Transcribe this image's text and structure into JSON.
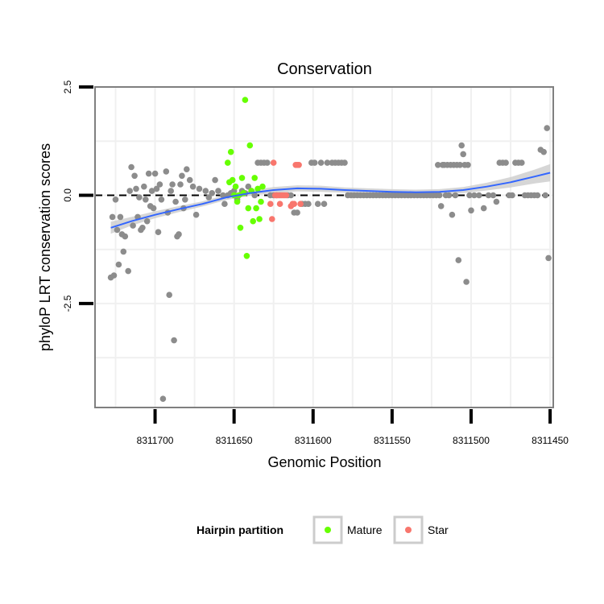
{
  "chart_data": {
    "type": "scatter",
    "title": "Conservation",
    "xlabel": "Genomic Position",
    "ylabel": "phyloP LRT conservation scores",
    "x_reversed": true,
    "xlim": [
      8311738,
      8311448
    ],
    "ylim": [
      -4.9,
      2.5
    ],
    "x_ticks": [
      8311700,
      8311650,
      8311600,
      8311550,
      8311500,
      8311450
    ],
    "x_tick_labels": [
      "8311700",
      "8311650",
      "8311600",
      "8311550",
      "8311500",
      "8311450"
    ],
    "y_ticks": [
      2.5,
      0.0,
      -2.5
    ],
    "y_tick_labels": [
      "2.5",
      "0.0",
      "-2.5"
    ],
    "reference_line": 0,
    "grid": true,
    "legend": {
      "title": "Hairpin partition",
      "entries": [
        {
          "label": "Mature",
          "color": "#66ff00"
        },
        {
          "label": "Star",
          "color": "#f8766d"
        }
      ]
    },
    "colors": {
      "other": "#8c8c8c",
      "smooth_line": "#3366ff",
      "ribbon": "#cccccc"
    },
    "series": [
      {
        "name": "Other",
        "points": [
          [
            8311727,
            -0.5
          ],
          [
            8311728,
            -1.9
          ],
          [
            8311726,
            -1.85
          ],
          [
            8311725,
            -0.1
          ],
          [
            8311723,
            -1.6
          ],
          [
            8311722,
            -0.5
          ],
          [
            8311724,
            -0.8
          ],
          [
            8311721,
            -0.9
          ],
          [
            8311720,
            -1.3
          ],
          [
            8311719,
            -0.95
          ],
          [
            8311717,
            -1.75
          ],
          [
            8311716,
            0.1
          ],
          [
            8311715,
            0.65
          ],
          [
            8311714,
            -0.7
          ],
          [
            8311713,
            0.45
          ],
          [
            8311712,
            0.15
          ],
          [
            8311711,
            -0.5
          ],
          [
            8311710,
            -0.05
          ],
          [
            8311709,
            -0.8
          ],
          [
            8311708,
            -0.75
          ],
          [
            8311707,
            0.2
          ],
          [
            8311706,
            -0.1
          ],
          [
            8311705,
            -0.6
          ],
          [
            8311704,
            0.5
          ],
          [
            8311703,
            -0.25
          ],
          [
            8311702,
            0.1
          ],
          [
            8311701,
            -0.3
          ],
          [
            8311700,
            0.5
          ],
          [
            8311699,
            0.15
          ],
          [
            8311698,
            -0.85
          ],
          [
            8311697,
            0.25
          ],
          [
            8311696,
            -0.1
          ],
          [
            8311695,
            -4.7
          ],
          [
            8311693,
            0.55
          ],
          [
            8311692,
            -0.4
          ],
          [
            8311691,
            -2.3
          ],
          [
            8311690,
            0.1
          ],
          [
            8311689,
            0.25
          ],
          [
            8311688,
            -3.35
          ],
          [
            8311687,
            -0.15
          ],
          [
            8311686,
            -0.95
          ],
          [
            8311685,
            -0.9
          ],
          [
            8311684,
            0.25
          ],
          [
            8311683,
            0.45
          ],
          [
            8311682,
            -0.3
          ],
          [
            8311681,
            -0.1
          ],
          [
            8311680,
            0.6
          ],
          [
            8311678,
            0.35
          ],
          [
            8311676,
            0.2
          ],
          [
            8311674,
            -0.45
          ],
          [
            8311672,
            0.15
          ],
          [
            8311668,
            0.1
          ],
          [
            8311666,
            -0.05
          ],
          [
            8311664,
            0.05
          ],
          [
            8311662,
            0.35
          ],
          [
            8311660,
            0.1
          ],
          [
            8311657,
            0.0
          ],
          [
            8311656,
            -0.2
          ],
          [
            8311654,
            0.0
          ],
          [
            8311652,
            0.05
          ],
          [
            8311650,
            0.1
          ],
          [
            8311648,
            -0.1
          ],
          [
            8311645,
            0.1
          ],
          [
            8311643,
            0.05
          ],
          [
            8311641,
            0.2
          ],
          [
            8311639,
            0.1
          ],
          [
            8311637,
            0.0
          ],
          [
            8311635,
            0.75
          ],
          [
            8311633,
            0.75
          ],
          [
            8311631,
            0.75
          ],
          [
            8311629,
            0.75
          ],
          [
            8311627,
            0.0
          ],
          [
            8311625,
            0.0
          ],
          [
            8311623,
            0.0
          ],
          [
            8311621,
            0.0
          ],
          [
            8311616,
            0.0
          ],
          [
            8311614,
            0.0
          ],
          [
            8311612,
            -0.4
          ],
          [
            8311610,
            -0.4
          ],
          [
            8311607,
            -0.2
          ],
          [
            8311605,
            -0.2
          ],
          [
            8311603,
            -0.2
          ],
          [
            8311601,
            0.75
          ],
          [
            8311599,
            0.75
          ],
          [
            8311597,
            -0.2
          ],
          [
            8311595,
            0.75
          ],
          [
            8311593,
            -0.2
          ],
          [
            8311591,
            0.75
          ],
          [
            8311588,
            0.75
          ],
          [
            8311586,
            0.75
          ],
          [
            8311584,
            0.75
          ],
          [
            8311582,
            0.75
          ],
          [
            8311580,
            0.75
          ],
          [
            8311578,
            0.0
          ],
          [
            8311576,
            0.0
          ],
          [
            8311574,
            0.0
          ],
          [
            8311572,
            0.0
          ],
          [
            8311570,
            0.0
          ],
          [
            8311568,
            0.0
          ],
          [
            8311566,
            0.0
          ],
          [
            8311564,
            0.0
          ],
          [
            8311562,
            0.0
          ],
          [
            8311560,
            0.0
          ],
          [
            8311558,
            0.0
          ],
          [
            8311556,
            0.0
          ],
          [
            8311554,
            0.0
          ],
          [
            8311552,
            0.0
          ],
          [
            8311550,
            0.0
          ],
          [
            8311548,
            0.0
          ],
          [
            8311546,
            0.0
          ],
          [
            8311544,
            0.0
          ],
          [
            8311542,
            0.0
          ],
          [
            8311540,
            0.0
          ],
          [
            8311538,
            0.0
          ],
          [
            8311536,
            0.0
          ],
          [
            8311534,
            0.0
          ],
          [
            8311532,
            0.0
          ],
          [
            8311530,
            0.0
          ],
          [
            8311528,
            0.0
          ],
          [
            8311526,
            0.0
          ],
          [
            8311524,
            0.0
          ],
          [
            8311522,
            0.0
          ],
          [
            8311521,
            0.7
          ],
          [
            8311520,
            0.0
          ],
          [
            8311519,
            -0.25
          ],
          [
            8311518,
            0.7
          ],
          [
            8311517,
            0.7
          ],
          [
            8311516,
            0.0
          ],
          [
            8311515,
            0.7
          ],
          [
            8311514,
            0.0
          ],
          [
            8311513,
            0.7
          ],
          [
            8311512,
            -0.45
          ],
          [
            8311511,
            0.7
          ],
          [
            8311510,
            0.0
          ],
          [
            8311509,
            0.7
          ],
          [
            8311508,
            -1.5
          ],
          [
            8311507,
            0.7
          ],
          [
            8311506,
            1.15
          ],
          [
            8311505,
            0.95
          ],
          [
            8311504,
            0.7
          ],
          [
            8311503,
            -2.0
          ],
          [
            8311502,
            0.7
          ],
          [
            8311501,
            0.0
          ],
          [
            8311500,
            -0.35
          ],
          [
            8311498,
            0.0
          ],
          [
            8311495,
            0.0
          ],
          [
            8311492,
            -0.3
          ],
          [
            8311489,
            0.0
          ],
          [
            8311486,
            0.0
          ],
          [
            8311484,
            -0.15
          ],
          [
            8311482,
            0.75
          ],
          [
            8311480,
            0.75
          ],
          [
            8311478,
            0.75
          ],
          [
            8311476,
            0.0
          ],
          [
            8311474,
            0.0
          ],
          [
            8311472,
            0.75
          ],
          [
            8311470,
            0.75
          ],
          [
            8311468,
            0.75
          ],
          [
            8311466,
            0.0
          ],
          [
            8311464,
            0.0
          ],
          [
            8311462,
            0.0
          ],
          [
            8311460,
            0.0
          ],
          [
            8311458,
            0.0
          ],
          [
            8311456,
            1.05
          ],
          [
            8311454,
            1.0
          ],
          [
            8311452,
            1.55
          ],
          [
            8311451,
            -1.45
          ],
          [
            8311453,
            0.0
          ]
        ]
      },
      {
        "name": "Mature",
        "points": [
          [
            8311654,
            0.75
          ],
          [
            8311653,
            0.3
          ],
          [
            8311652,
            1.0
          ],
          [
            8311651,
            0.35
          ],
          [
            8311650,
            0.0
          ],
          [
            8311649,
            0.2
          ],
          [
            8311648,
            -0.15
          ],
          [
            8311647,
            0.0
          ],
          [
            8311646,
            -0.75
          ],
          [
            8311645,
            0.4
          ],
          [
            8311644,
            0.05
          ],
          [
            8311643,
            2.2
          ],
          [
            8311642,
            -1.4
          ],
          [
            8311641,
            -0.3
          ],
          [
            8311640,
            1.15
          ],
          [
            8311639,
            0.1
          ],
          [
            8311638,
            -0.6
          ],
          [
            8311637,
            0.4
          ],
          [
            8311636,
            -0.3
          ],
          [
            8311635,
            0.15
          ],
          [
            8311634,
            -0.55
          ],
          [
            8311633,
            -0.15
          ],
          [
            8311632,
            0.2
          ]
        ]
      },
      {
        "name": "Star",
        "points": [
          [
            8311627,
            -0.2
          ],
          [
            8311626,
            -0.55
          ],
          [
            8311625,
            0.75
          ],
          [
            8311624,
            0.0
          ],
          [
            8311623,
            0.0
          ],
          [
            8311622,
            0.0
          ],
          [
            8311621,
            -0.2
          ],
          [
            8311620,
            0.0
          ],
          [
            8311619,
            0.0
          ],
          [
            8311618,
            0.0
          ],
          [
            8311617,
            0.0
          ],
          [
            8311614,
            -0.25
          ],
          [
            8311613,
            -0.2
          ],
          [
            8311612,
            -0.2
          ],
          [
            8311611,
            0.7
          ],
          [
            8311610,
            0.7
          ],
          [
            8311609,
            0.7
          ],
          [
            8311608,
            -0.2
          ]
        ]
      }
    ],
    "smooth": {
      "x": [
        8311728,
        8311715,
        8311700,
        8311685,
        8311670,
        8311655,
        8311640,
        8311625,
        8311610,
        8311595,
        8311580,
        8311565,
        8311550,
        8311535,
        8311520,
        8311505,
        8311490,
        8311475,
        8311460,
        8311450
      ],
      "y": [
        -0.75,
        -0.6,
        -0.45,
        -0.32,
        -0.2,
        -0.05,
        0.05,
        0.12,
        0.16,
        0.15,
        0.12,
        0.1,
        0.08,
        0.07,
        0.08,
        0.12,
        0.2,
        0.3,
        0.43,
        0.52
      ],
      "se": [
        0.14,
        0.1,
        0.08,
        0.07,
        0.06,
        0.06,
        0.06,
        0.07,
        0.07,
        0.07,
        0.06,
        0.06,
        0.06,
        0.06,
        0.06,
        0.07,
        0.09,
        0.12,
        0.16,
        0.2
      ]
    }
  }
}
